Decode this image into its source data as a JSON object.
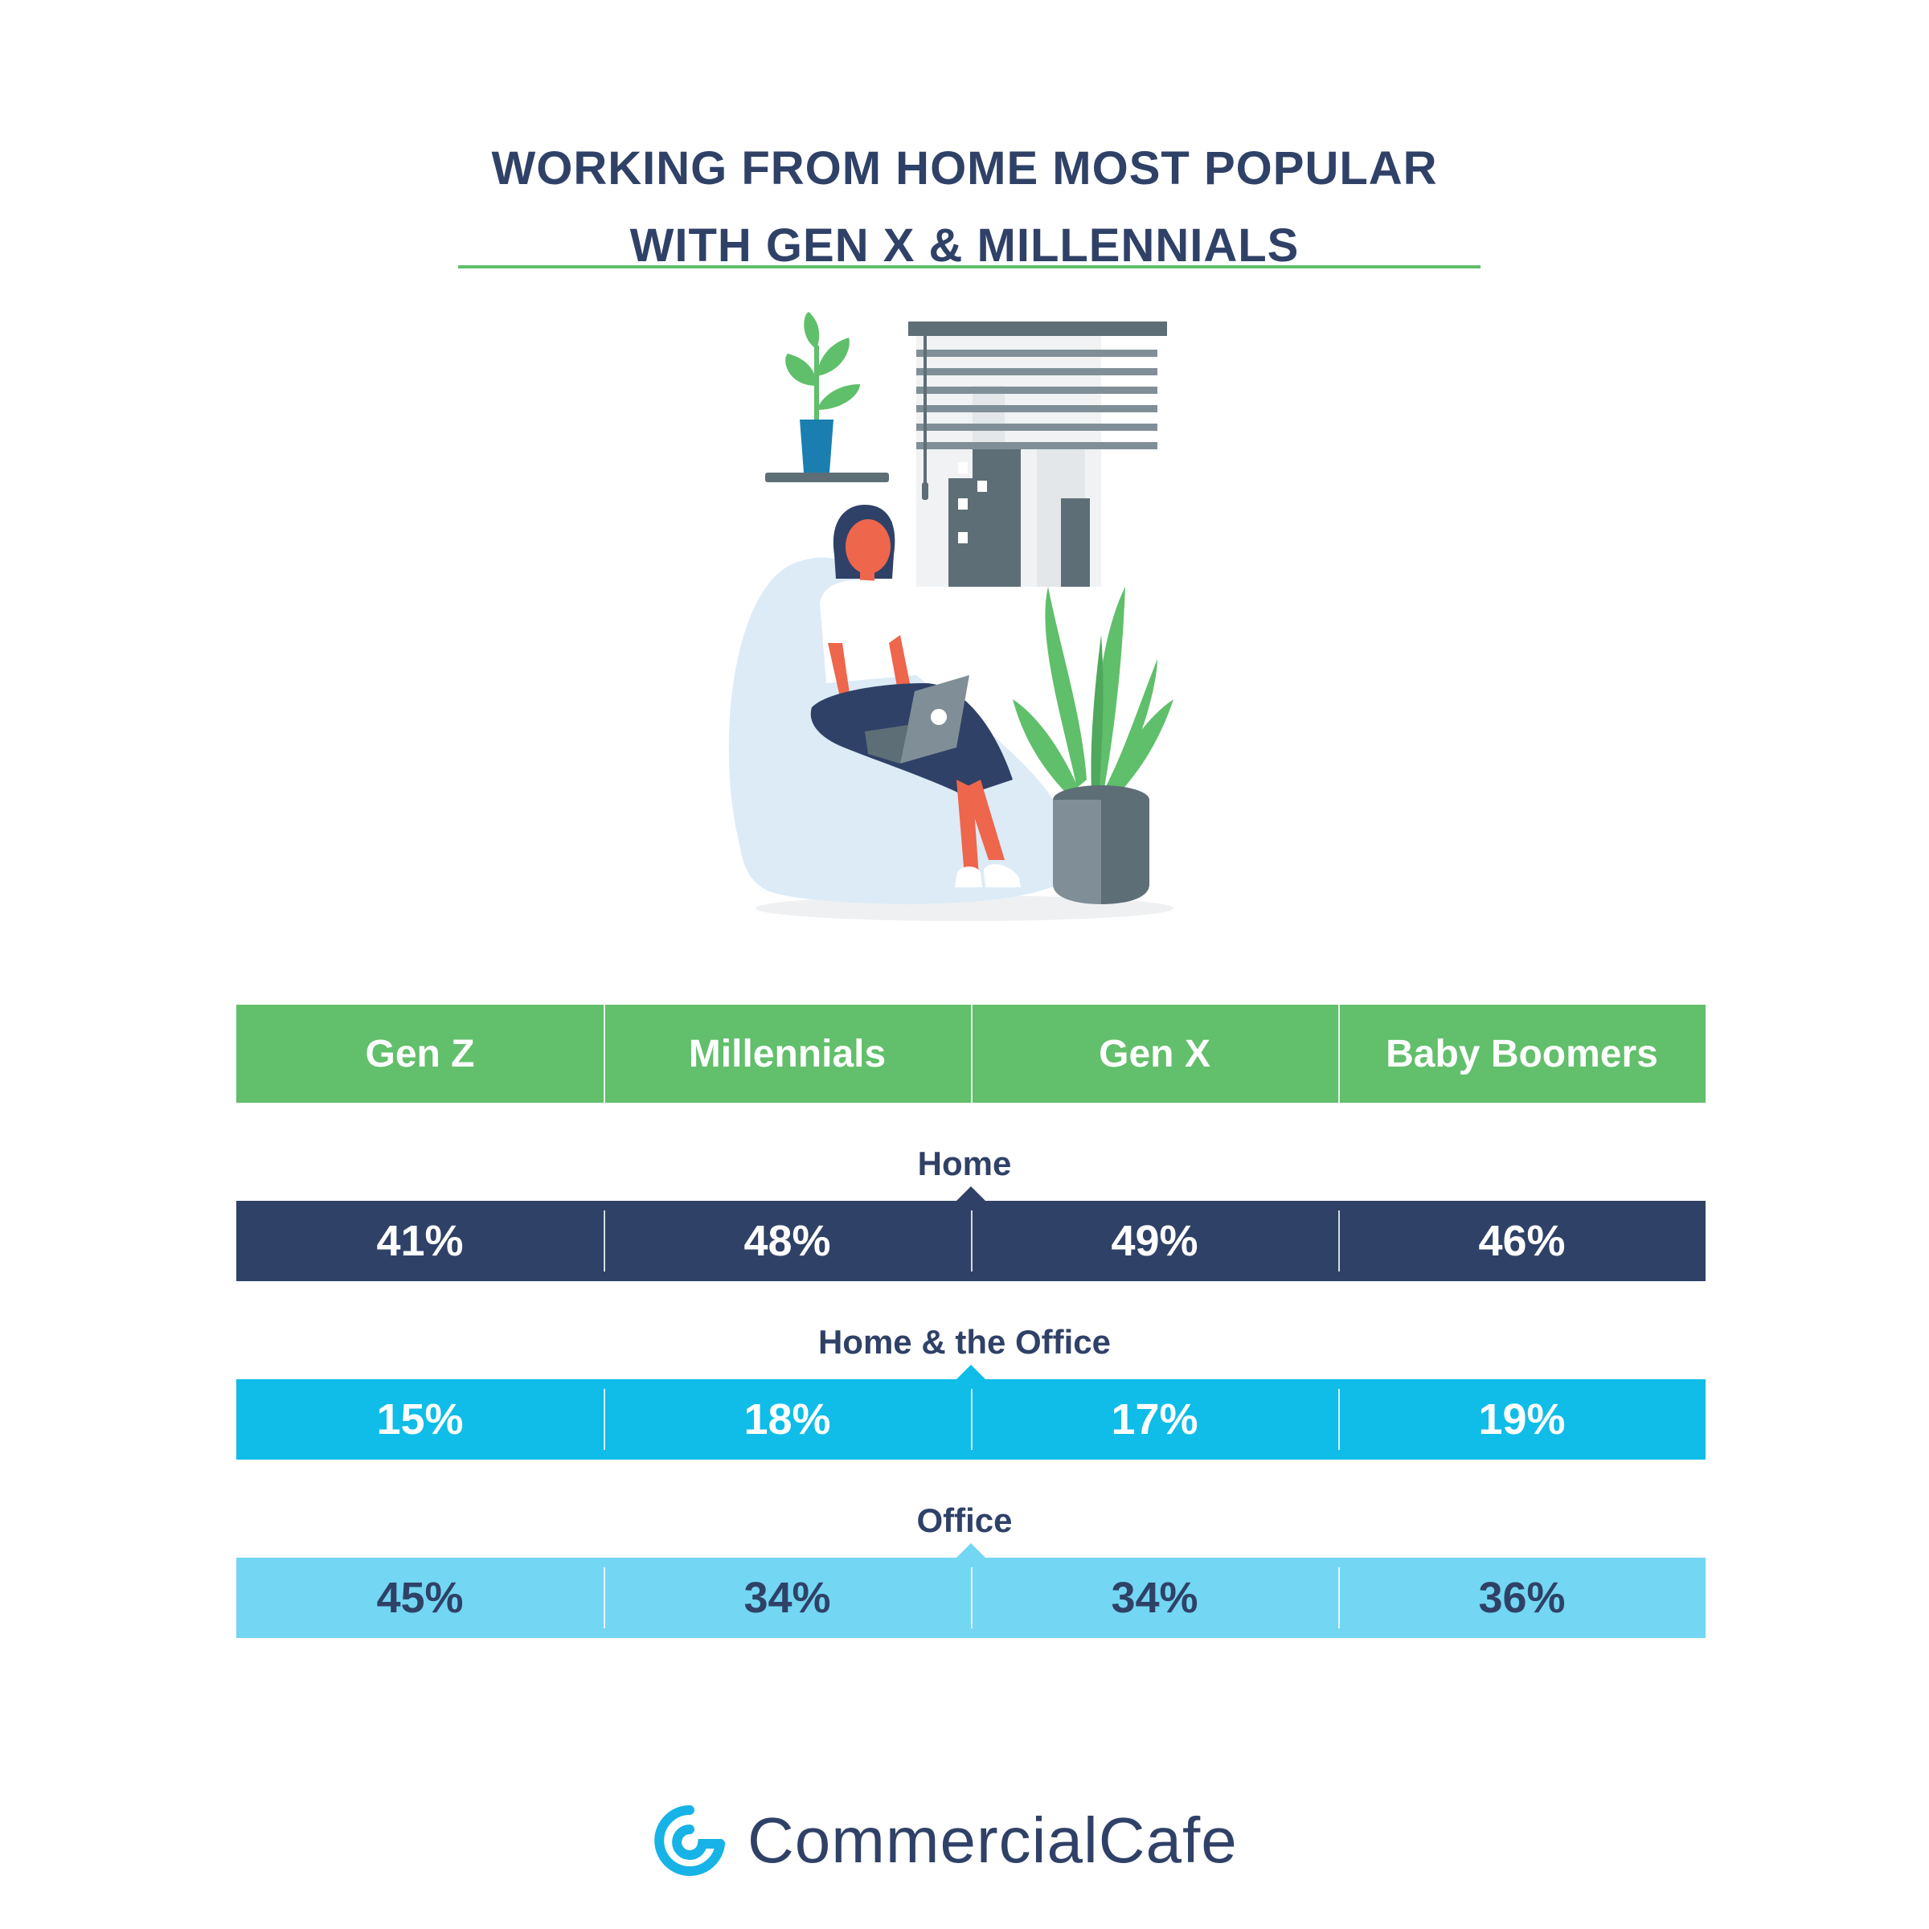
{
  "title_line1": "WORKING FROM HOME MOST POPULAR",
  "title_line2": "WITH GEN X & MILLENNIALS",
  "brand": "CommercialCafe",
  "colors": {
    "accent_green": "#62bf6b",
    "navy": "#2f4167",
    "home_row": "#2f4167",
    "home_office_row": "#0fbde8",
    "office_row": "#73d6f2"
  },
  "chart_data": {
    "type": "table",
    "title": "WORKING FROM HOME MOST POPULAR WITH GEN X & MILLENNIALS",
    "columns": [
      "Gen Z",
      "Millennials",
      "Gen X",
      "Baby Boomers"
    ],
    "rows": [
      {
        "label": "Home",
        "values": [
          "41%",
          "48%",
          "49%",
          "46%"
        ]
      },
      {
        "label": "Home & the Office",
        "values": [
          "15%",
          "18%",
          "17%",
          "19%"
        ]
      },
      {
        "label": "Office",
        "values": [
          "45%",
          "34%",
          "34%",
          "36%"
        ]
      }
    ]
  }
}
